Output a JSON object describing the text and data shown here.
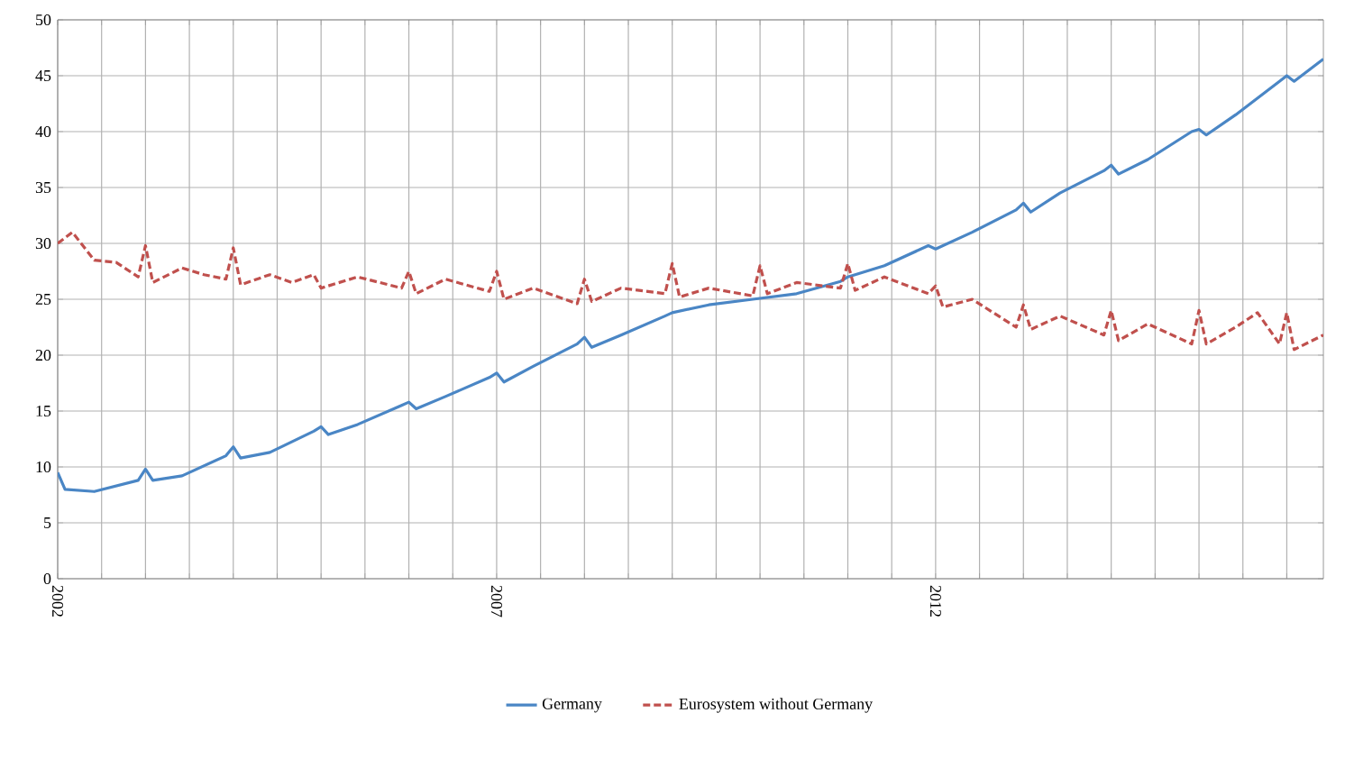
{
  "chart_data": {
    "type": "line",
    "x": [
      "2002-01",
      "2002-02",
      "2002-06",
      "2002-12",
      "2003-01",
      "2003-02",
      "2003-06",
      "2003-12",
      "2004-01",
      "2004-02",
      "2004-06",
      "2004-12",
      "2005-01",
      "2005-02",
      "2005-06",
      "2005-12",
      "2006-01",
      "2006-02",
      "2006-06",
      "2006-12",
      "2007-01",
      "2007-02",
      "2007-06",
      "2007-12",
      "2008-01",
      "2008-02",
      "2008-06",
      "2008-12",
      "2009-01",
      "2009-06",
      "2009-12",
      "2010-06",
      "2010-12",
      "2011-01",
      "2011-06",
      "2011-12",
      "2012-01",
      "2012-06",
      "2012-12",
      "2013-01",
      "2013-02",
      "2013-06",
      "2013-12",
      "2014-01",
      "2014-02",
      "2014-06",
      "2014-12",
      "2015-01",
      "2015-02",
      "2015-06",
      "2015-12",
      "2016-01",
      "2016-02",
      "2016-06"
    ],
    "series": [
      {
        "name": "Germany",
        "color": "#4a86c5",
        "line_style": "solid",
        "values": [
          9.5,
          8,
          7.8,
          8.8,
          9.8,
          8.8,
          9.2,
          11,
          11.8,
          10.8,
          11.3,
          13.2,
          13.6,
          12.9,
          13.8,
          15.5,
          15.8,
          15.2,
          16.3,
          18,
          18.4,
          17.6,
          19,
          21,
          21.6,
          20.7,
          21.8,
          23.5,
          23.8,
          24.5,
          25,
          25.5,
          26.6,
          27,
          28,
          29.8,
          29.5,
          31,
          33,
          33.6,
          32.8,
          34.5,
          36.5,
          37,
          36.2,
          37.5,
          40,
          40.2,
          39.7,
          41.5,
          44.5,
          45,
          44.5,
          46.5
        ]
      },
      {
        "name": "Eurosystem without Germany",
        "color": "#c0504d",
        "line_style": "dashed",
        "x": [
          "2002-01",
          "2002-03",
          "2002-06",
          "2002-09",
          "2002-12",
          "2003-01",
          "2003-02",
          "2003-06",
          "2003-09",
          "2003-12",
          "2004-01",
          "2004-02",
          "2004-06",
          "2004-09",
          "2004-12",
          "2005-01",
          "2005-06",
          "2005-12",
          "2006-01",
          "2006-02",
          "2006-06",
          "2006-12",
          "2007-01",
          "2007-02",
          "2007-06",
          "2007-12",
          "2008-01",
          "2008-02",
          "2008-06",
          "2008-12",
          "2009-01",
          "2009-02",
          "2009-06",
          "2009-12",
          "2010-01",
          "2010-02",
          "2010-06",
          "2010-12",
          "2011-01",
          "2011-02",
          "2011-06",
          "2011-12",
          "2012-01",
          "2012-02",
          "2012-06",
          "2012-12",
          "2013-01",
          "2013-02",
          "2013-06",
          "2013-12",
          "2014-01",
          "2014-02",
          "2014-06",
          "2014-12",
          "2015-01",
          "2015-02",
          "2015-06",
          "2015-09",
          "2015-12",
          "2016-01",
          "2016-02",
          "2016-06"
        ],
        "values": [
          30,
          31,
          28.5,
          28.3,
          27,
          29.8,
          26.5,
          27.8,
          27.2,
          26.8,
          29.6,
          26.3,
          27.2,
          26.5,
          27.2,
          26,
          27,
          26,
          27.5,
          25.5,
          26.8,
          25.7,
          27.5,
          25,
          26,
          24.6,
          26.8,
          24.8,
          26,
          25.5,
          28.2,
          25.2,
          26,
          25.3,
          28,
          25.5,
          26.5,
          26,
          28.2,
          25.8,
          27,
          25.5,
          26.2,
          24.3,
          25,
          22.5,
          24.5,
          22.3,
          23.5,
          21.8,
          24,
          21.3,
          22.8,
          21,
          24,
          21,
          22.5,
          23.8,
          21,
          23.8,
          20.5,
          21.8
        ]
      }
    ],
    "xlim": [
      "2002-01",
      "2016-06"
    ],
    "xticks": [
      "2002",
      {
        "value": "2002-07",
        "label": null
      },
      {
        "value": "2003",
        "label": null
      },
      {
        "value": "2003-07",
        "label": null
      },
      {
        "value": "2004",
        "label": null
      },
      {
        "value": "2004-07",
        "label": null
      },
      {
        "value": "2005",
        "label": null
      },
      {
        "value": "2005-07",
        "label": null
      },
      {
        "value": "2006",
        "label": null
      },
      {
        "value": "2006-07",
        "label": null
      },
      "2007",
      {
        "value": "2007-07",
        "label": null
      },
      {
        "value": "2008",
        "label": null
      },
      {
        "value": "2008-07",
        "label": null
      },
      {
        "value": "2009",
        "label": null
      },
      {
        "value": "2009-07",
        "label": null
      },
      {
        "value": "2010",
        "label": null
      },
      {
        "value": "2010-07",
        "label": null
      },
      {
        "value": "2011",
        "label": null
      },
      {
        "value": "2011-07",
        "label": null
      },
      "2012",
      {
        "value": "2012-07",
        "label": null
      },
      {
        "value": "2013",
        "label": null
      },
      {
        "value": "2013-07",
        "label": null
      },
      {
        "value": "2014",
        "label": null
      },
      {
        "value": "2014-07",
        "label": null
      },
      {
        "value": "2015",
        "label": null
      },
      {
        "value": "2015-07",
        "label": null
      },
      {
        "value": "2016",
        "label": null
      }
    ],
    "ylim": [
      0,
      50
    ],
    "yticks": [
      0,
      5,
      10,
      15,
      20,
      25,
      30,
      35,
      40,
      45,
      50
    ],
    "grid": true,
    "legend": "bottom",
    "marker": "none"
  }
}
